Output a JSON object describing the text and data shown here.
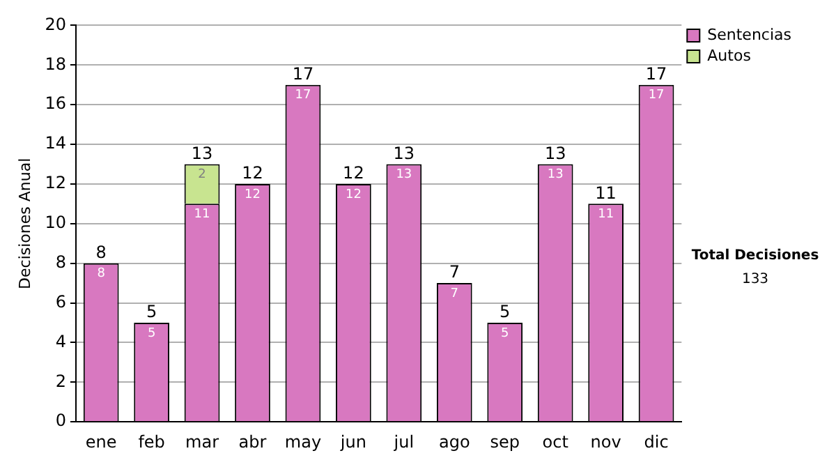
{
  "chart_data": {
    "type": "bar",
    "ylabel": "Decisiones Anual",
    "categories": [
      "ene",
      "feb",
      "mar",
      "abr",
      "may",
      "jun",
      "jul",
      "ago",
      "sep",
      "oct",
      "nov",
      "dic"
    ],
    "series": [
      {
        "name": "Sentencias",
        "color": "#d878c0",
        "values": [
          8,
          5,
          11,
          12,
          17,
          12,
          13,
          7,
          5,
          13,
          11,
          17
        ]
      },
      {
        "name": "Autos",
        "color": "#c8e490",
        "values": [
          null,
          null,
          2,
          null,
          null,
          null,
          null,
          null,
          null,
          null,
          null,
          null
        ]
      }
    ],
    "stacked": true,
    "ylim": [
      0,
      20
    ],
    "yticks": [
      0,
      2,
      4,
      6,
      8,
      10,
      12,
      14,
      16,
      18,
      20
    ],
    "grid": "y",
    "legend": "right",
    "data_labels": true,
    "totals": [
      "8",
      "5",
      "13",
      "12",
      "17",
      "12",
      "13",
      "7",
      "5",
      "13",
      "11",
      "17"
    ],
    "annotations": [
      "Total Decisiones",
      "133"
    ]
  }
}
